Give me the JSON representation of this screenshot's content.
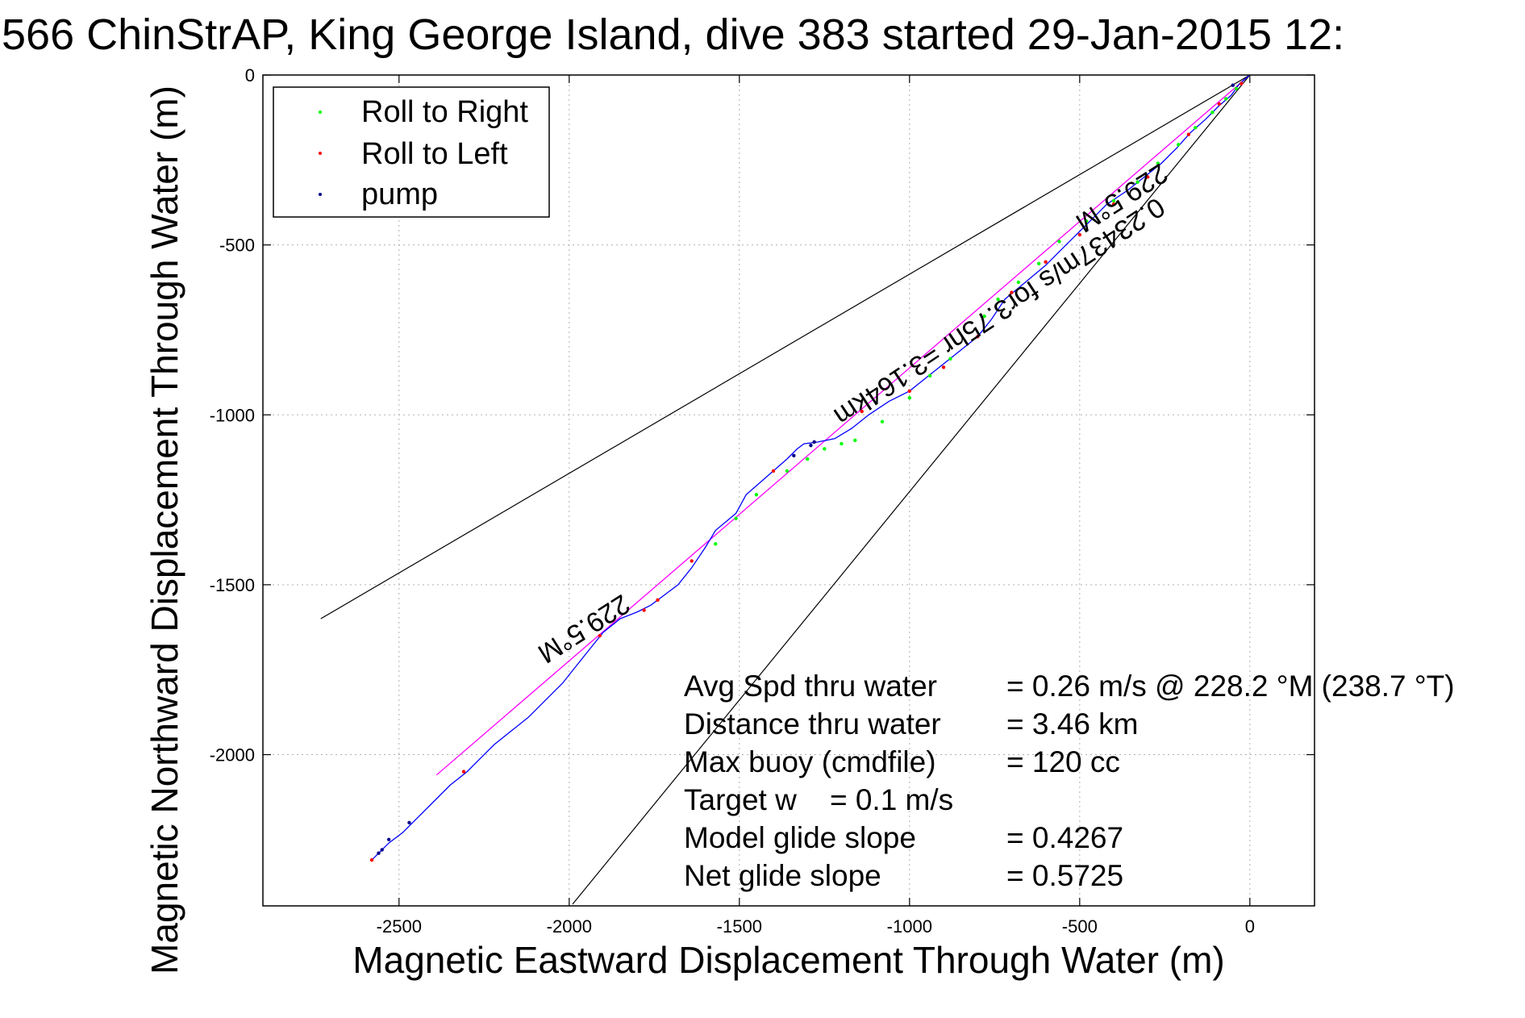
{
  "chart_data": {
    "type": "line",
    "title": "566 ChinStrAP, King George Island, dive 383 started 29-Jan-2015 12:",
    "xlabel": "Magnetic Eastward Displacement Through Water (m)",
    "ylabel": "Magnetic Northward Displacement Through Water (m)",
    "xlim": [
      -2900,
      190
    ],
    "ylim": [
      -2445,
      0
    ],
    "xticks": [
      -2500,
      -2000,
      -1500,
      -1000,
      -500,
      0
    ],
    "yticks": [
      0,
      -500,
      -1000,
      -1500,
      -2000
    ],
    "grid": true,
    "legend": {
      "placement": "top-left",
      "entries": [
        {
          "label": "Roll to Right",
          "color": "#00ff00"
        },
        {
          "label": "Roll to Left",
          "color": "#ff0000"
        },
        {
          "label": "pump",
          "color": "#00008b"
        }
      ]
    },
    "colors": {
      "track": "#0000ff",
      "heading_line": "#ff00ff",
      "guide_lines": "#000000"
    },
    "track": {
      "x": [
        0,
        -30,
        -55,
        -90,
        -130,
        -175,
        -215,
        -260,
        -310,
        -360,
        -420,
        -480,
        -540,
        -600,
        -660,
        -720,
        -760,
        -800,
        -850,
        -900,
        -950,
        -1000,
        -1060,
        -1120,
        -1170,
        -1220,
        -1270,
        -1310,
        -1330,
        -1360,
        -1400,
        -1440,
        -1480,
        -1510,
        -1540,
        -1570,
        -1600,
        -1640,
        -1680,
        -1720,
        -1760,
        -1800,
        -1850,
        -1900,
        -1940,
        -1980,
        -2020,
        -2070,
        -2120,
        -2170,
        -2220,
        -2260,
        -2300,
        -2350,
        -2400,
        -2450,
        -2490,
        -2530,
        -2560,
        -2580
      ],
      "y": [
        0,
        -25,
        -60,
        -90,
        -130,
        -170,
        -215,
        -260,
        -300,
        -340,
        -380,
        -440,
        -500,
        -560,
        -610,
        -660,
        -720,
        -770,
        -810,
        -850,
        -890,
        -930,
        -960,
        -1000,
        -1040,
        -1070,
        -1080,
        -1085,
        -1100,
        -1130,
        -1165,
        -1200,
        -1235,
        -1290,
        -1315,
        -1340,
        -1390,
        -1450,
        -1500,
        -1530,
        -1560,
        -1580,
        -1600,
        -1640,
        -1690,
        -1740,
        -1790,
        -1840,
        -1890,
        -1930,
        -1970,
        -2010,
        -2050,
        -2090,
        -2140,
        -2190,
        -2230,
        -2260,
        -2290,
        -2310
      ]
    },
    "heading_line": {
      "x": [
        0,
        -2390
      ],
      "y": [
        0,
        -2060
      ]
    },
    "guide_lines": [
      {
        "x": [
          0,
          -2730
        ],
        "y": [
          0,
          -1600
        ]
      },
      {
        "x": [
          0,
          -1990
        ],
        "y": [
          0,
          -2440
        ]
      }
    ],
    "roll_right_points": {
      "x": [
        -1570,
        -1510,
        -1450,
        -1360,
        -1300,
        -1250,
        -1200,
        -1160,
        -1080,
        -1000,
        -940,
        -880,
        -780,
        -740,
        -680,
        -620,
        -560,
        -480,
        -400,
        -330,
        -270,
        -210,
        -160,
        -110,
        -70,
        -40
      ],
      "y": [
        -1380,
        -1305,
        -1235,
        -1165,
        -1130,
        -1100,
        -1085,
        -1075,
        -1020,
        -950,
        -885,
        -835,
        -710,
        -660,
        -610,
        -555,
        -490,
        -430,
        -370,
        -315,
        -260,
        -205,
        -155,
        -110,
        -70,
        -40
      ]
    },
    "roll_left_points": {
      "x": [
        -2580,
        -2310,
        -1910,
        -1780,
        -1740,
        -1640,
        -1400,
        -1280,
        -1140,
        -1000,
        -900,
        -800,
        -700,
        -600,
        -500,
        -400,
        -300,
        -180,
        -90,
        -25
      ],
      "y": [
        -2310,
        -2050,
        -1650,
        -1575,
        -1545,
        -1430,
        -1165,
        -1080,
        -990,
        -930,
        -860,
        -770,
        -640,
        -550,
        -470,
        -380,
        -300,
        -175,
        -85,
        -25
      ]
    },
    "pump_points": {
      "x": [
        -2560,
        -2550,
        -2530,
        -2470,
        -1290,
        -1280,
        -1340,
        -50
      ],
      "y": [
        -2290,
        -2280,
        -2250,
        -2200,
        -1090,
        -1080,
        -1120,
        -30
      ]
    },
    "annotations": {
      "heading_upper": "229.5°M",
      "heading_lower": "229.5°M",
      "speed_note": "0.23437m/s for3.75hr =3.164km"
    },
    "stats": [
      {
        "label": "Avg Spd thru water",
        "value": "=  0.26 m/s @ 228.2 °M (238.7 °T)"
      },
      {
        "label": "Distance thru water",
        "value": "=  3.46 km"
      },
      {
        "label": "Max buoy (cmdfile)",
        "value": "= 120 cc"
      },
      {
        "label": "Target w    = 0.1 m/s",
        "value": ""
      },
      {
        "label": "Model glide slope",
        "value": "= 0.4267"
      },
      {
        "label": "Net glide slope",
        "value": "= 0.5725"
      }
    ]
  }
}
